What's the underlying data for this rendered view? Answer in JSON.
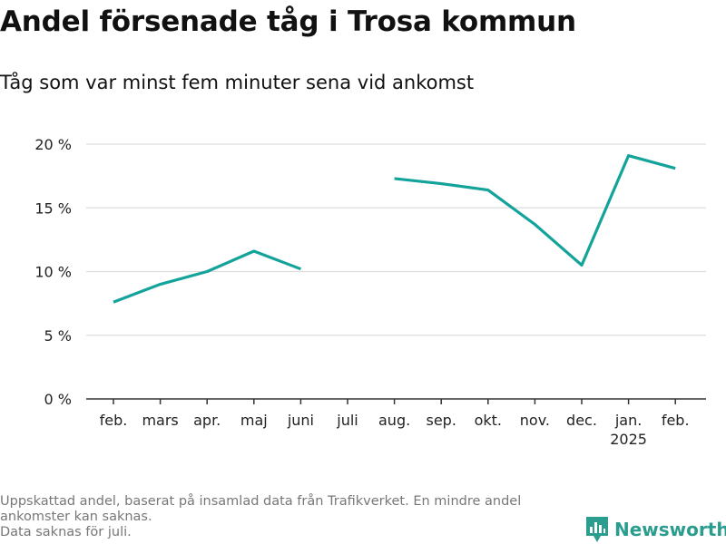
{
  "header": {
    "title": "Andel försenade tåg i Trosa kommun",
    "subtitle": "Tåg som var minst fem minuter sena vid ankomst"
  },
  "footnote": {
    "lines": [
      "Uppskattad andel, baserat på insamlad data från Trafikverket. En mindre andel ankomster kan saknas.",
      "Data saknas för juli."
    ]
  },
  "brand": {
    "name": "Newsworthy",
    "icon": "bar-chart-logo-icon",
    "color": "#2a9d8f"
  },
  "chart_data": {
    "type": "line",
    "categories": [
      "feb.",
      "mars",
      "apr.",
      "maj",
      "juni",
      "juli",
      "aug.",
      "sep.",
      "okt.",
      "nov.",
      "dec.",
      "jan.",
      "feb."
    ],
    "year_labels": [
      "",
      "",
      "",
      "",
      "",
      "",
      "",
      "",
      "",
      "",
      "",
      "2025",
      ""
    ],
    "series": [
      {
        "name": "",
        "color": "#13a39a",
        "values": [
          7.6,
          9.0,
          10.0,
          11.6,
          10.2,
          null,
          17.3,
          16.9,
          16.4,
          13.7,
          10.5,
          19.1,
          18.1
        ]
      }
    ],
    "ylim": [
      0,
      20
    ],
    "yticks": [
      0,
      5,
      10,
      15,
      20
    ],
    "ytick_labels": [
      "0 %",
      "5 %",
      "10 %",
      "15 %",
      "20 %"
    ],
    "grid": true,
    "xlabel": "",
    "ylabel": ""
  }
}
